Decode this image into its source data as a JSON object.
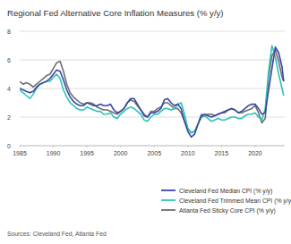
{
  "chart_data": {
    "type": "line",
    "title": "Regional Fed Alternative Core Inflation Measures (% y/y)",
    "source": "Sources: Cleveland Fed, Atlanta Fed",
    "legend": "bottom right",
    "grid": true,
    "xlim": [
      1985,
      2024.4
    ],
    "xticks": [
      1985,
      1990,
      1995,
      2000,
      2005,
      2010,
      2015,
      2020
    ],
    "ylim": [
      0,
      8
    ],
    "yticks": [
      0,
      2,
      4,
      6,
      8
    ],
    "x": [
      1985,
      1985.5,
      1986,
      1986.5,
      1987,
      1987.5,
      1988,
      1988.5,
      1989,
      1989.5,
      1990,
      1990.5,
      1991,
      1991.5,
      1992,
      1992.5,
      1993,
      1993.5,
      1994,
      1994.5,
      1995,
      1995.5,
      1996,
      1996.5,
      1997,
      1997.5,
      1998,
      1998.5,
      1999,
      1999.5,
      2000,
      2000.5,
      2001,
      2001.5,
      2002,
      2002.5,
      2003,
      2003.5,
      2004,
      2004.5,
      2005,
      2005.5,
      2006,
      2006.5,
      2007,
      2007.5,
      2008,
      2008.5,
      2009,
      2009.5,
      2010,
      2010.5,
      2011,
      2011.5,
      2012,
      2012.5,
      2013,
      2013.5,
      2014,
      2014.5,
      2015,
      2015.5,
      2016,
      2016.5,
      2017,
      2017.5,
      2018,
      2018.5,
      2019,
      2019.5,
      2020,
      2020.5,
      2021,
      2021.5,
      2022,
      2022.5,
      2023,
      2023.5,
      2024,
      2024.25
    ],
    "series": [
      {
        "name": "Cleveland Fed Median CPI (% y/y)",
        "color": "#3b47a3",
        "values": [
          4.0,
          3.9,
          3.8,
          3.7,
          3.8,
          4.1,
          4.3,
          4.4,
          4.5,
          4.7,
          5.0,
          5.3,
          5.2,
          4.6,
          3.9,
          3.4,
          3.1,
          2.9,
          2.8,
          2.8,
          3.0,
          2.9,
          2.8,
          2.8,
          2.9,
          2.8,
          2.8,
          2.9,
          2.5,
          2.3,
          2.4,
          2.6,
          3.0,
          3.3,
          3.3,
          2.9,
          2.5,
          2.1,
          2.0,
          2.3,
          2.3,
          2.4,
          2.6,
          3.2,
          3.3,
          3.0,
          2.8,
          2.9,
          2.6,
          1.7,
          1.0,
          0.6,
          0.8,
          1.5,
          2.1,
          2.2,
          2.1,
          2.0,
          2.1,
          2.2,
          2.3,
          2.4,
          2.5,
          2.6,
          2.5,
          2.3,
          2.4,
          2.6,
          2.8,
          2.9,
          2.9,
          2.6,
          2.2,
          2.3,
          3.9,
          5.4,
          6.9,
          6.5,
          5.5,
          4.5
        ]
      },
      {
        "name": "Cleveland Fed Trimmed Mean CPI (% y/y)",
        "color": "#2cc4b8",
        "values": [
          3.9,
          3.7,
          3.5,
          3.3,
          3.6,
          4.0,
          4.3,
          4.4,
          4.5,
          4.5,
          4.8,
          5.0,
          4.7,
          3.9,
          3.4,
          3.0,
          2.8,
          2.6,
          2.5,
          2.5,
          2.7,
          2.6,
          2.5,
          2.4,
          2.4,
          2.2,
          2.2,
          2.3,
          2.0,
          1.9,
          2.2,
          2.4,
          2.6,
          2.7,
          2.6,
          2.4,
          2.2,
          1.8,
          1.7,
          2.0,
          2.2,
          2.2,
          2.4,
          2.6,
          2.6,
          2.5,
          2.6,
          2.9,
          3.0,
          2.2,
          1.2,
          0.9,
          1.0,
          1.5,
          2.2,
          2.1,
          1.9,
          1.7,
          1.8,
          1.9,
          1.8,
          1.8,
          1.9,
          2.0,
          2.0,
          1.9,
          1.9,
          2.1,
          2.2,
          2.2,
          2.3,
          2.0,
          1.8,
          2.6,
          5.2,
          7.0,
          6.2,
          5.0,
          4.0,
          3.5
        ]
      },
      {
        "name": "Atlanta Fed Sticky Core CPI (% y/y)",
        "color": "#6e6e6e",
        "values": [
          4.5,
          4.3,
          4.4,
          4.3,
          4.1,
          4.3,
          4.5,
          4.7,
          4.9,
          5.0,
          5.4,
          5.8,
          5.9,
          5.2,
          4.3,
          3.7,
          3.4,
          3.2,
          3.0,
          2.9,
          3.0,
          3.0,
          2.9,
          2.7,
          2.6,
          2.5,
          2.5,
          2.4,
          2.3,
          2.2,
          2.4,
          2.6,
          3.0,
          3.2,
          3.1,
          2.8,
          2.5,
          2.2,
          2.0,
          2.4,
          2.4,
          2.6,
          2.7,
          3.0,
          3.0,
          2.8,
          2.6,
          2.6,
          2.3,
          1.7,
          1.2,
          0.9,
          1.0,
          1.5,
          2.0,
          2.1,
          2.2,
          2.2,
          2.1,
          2.2,
          2.3,
          2.3,
          2.5,
          2.6,
          2.5,
          2.3,
          2.3,
          2.4,
          2.5,
          2.6,
          2.8,
          2.3,
          1.6,
          1.9,
          4.8,
          6.3,
          6.7,
          5.9,
          4.8,
          4.5
        ]
      }
    ]
  }
}
